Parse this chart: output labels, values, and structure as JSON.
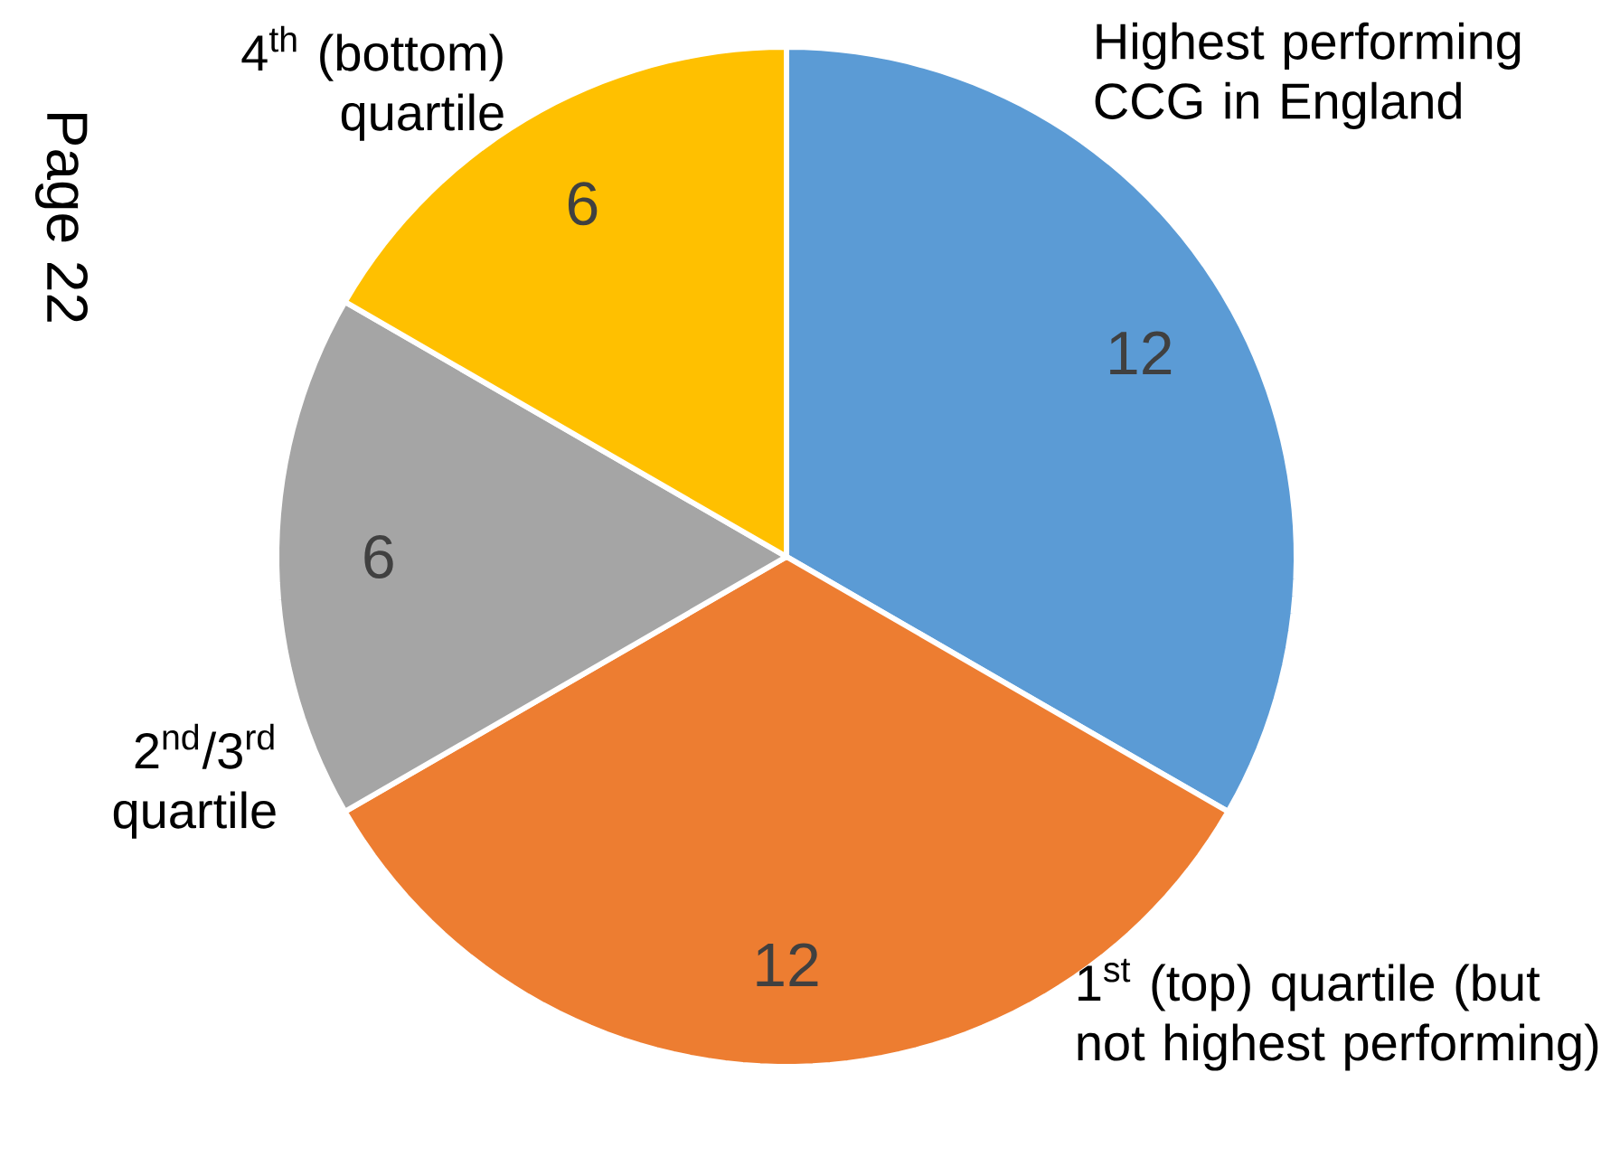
{
  "chart_data": {
    "type": "pie",
    "categories": [
      "Highest performing CCG in England",
      "1$^{st}$ (top) quartile (but not highest performing)",
      "2$^{nd}$/3$^{rd}$ quartile",
      "4$^{th}$ (bottom) quartile"
    ],
    "values": [
      12,
      12,
      6,
      6
    ],
    "colors": [
      "#5b9bd5",
      "#ed7d31",
      "#a5a5a5",
      "#ffc000"
    ],
    "data_labels": true,
    "annotations": [
      "Page 22"
    ]
  }
}
